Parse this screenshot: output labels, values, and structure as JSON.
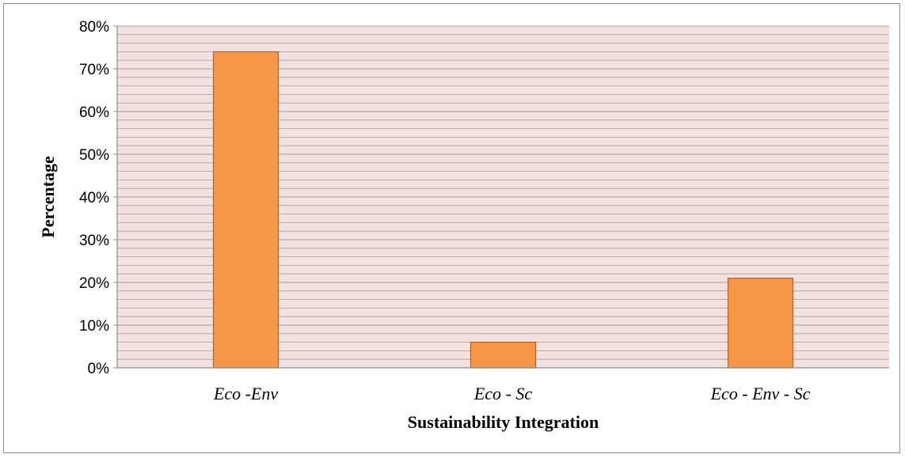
{
  "chart_data": {
    "type": "bar",
    "title": "",
    "xlabel": "Sustainability Integration",
    "ylabel": "Percentage",
    "categories": [
      "Eco -Env",
      "Eco - Sc",
      "Eco - Env - Sc"
    ],
    "values": [
      74,
      6,
      21
    ],
    "value_unit": "%",
    "ylim": [
      0,
      80
    ],
    "yticks": [
      "0%",
      "10%",
      "20%",
      "30%",
      "40%",
      "50%",
      "60%",
      "70%",
      "80%"
    ],
    "grid": true,
    "legend": "none",
    "colors": {
      "bar_fill": "#f79646",
      "bar_stroke": "#b8621c",
      "plot_background": "#f3e1e1",
      "gridline": "#a89c9c",
      "axis": "#8c8c8c"
    }
  }
}
